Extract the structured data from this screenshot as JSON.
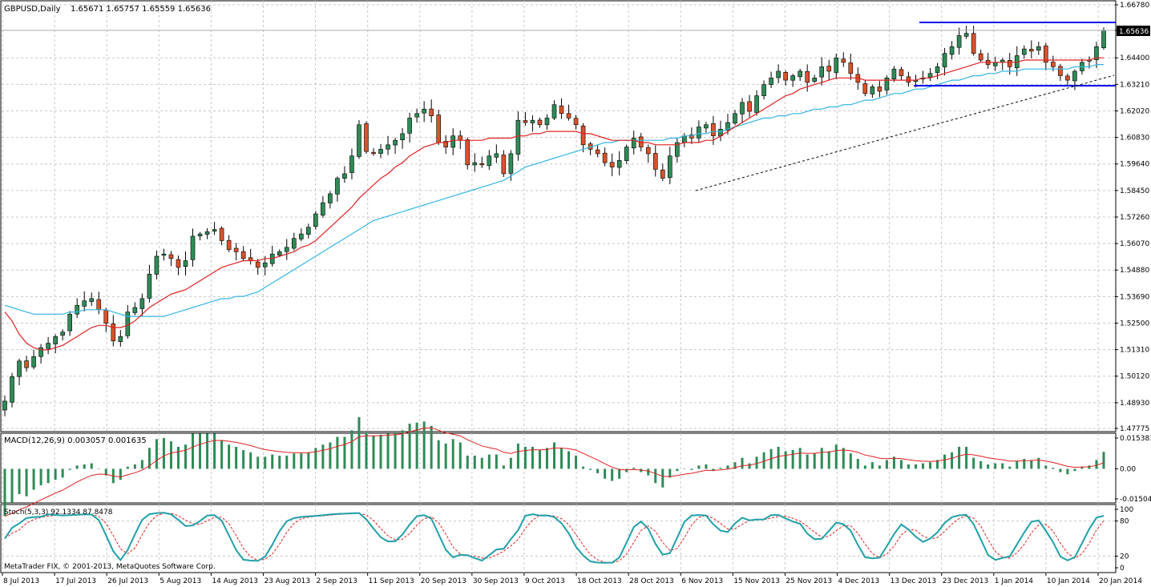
{
  "header": {
    "symbol_label": "GBPUSD,Daily",
    "ohlc_label": "1.65671 1.65757 1.65559 1.65636",
    "current_price_label": "1.65636"
  },
  "footer": {
    "copyright": "MetaTrader FIX, © 2001-2013, MetaQuotes Software Corp."
  },
  "colors": {
    "bull": "#2e8b57",
    "bear": "#d9532b",
    "ma_fast": "#e02020",
    "ma_slow": "#33b5e5",
    "channel": "#0000ee",
    "grid": "#c8c8c8",
    "stoch_main": "#20a0a8",
    "stoch_signal": "#e02020"
  },
  "chart_data": [
    {
      "type": "candlestick",
      "title": "GBPUSD,Daily",
      "y_ticks": [
        "1.66780",
        "1.65636",
        "1.64400",
        "1.63210",
        "1.62020",
        "1.60830",
        "1.59640",
        "1.58450",
        "1.57260",
        "1.56070",
        "1.54880",
        "1.53690",
        "1.52500",
        "1.51310",
        "1.50120",
        "1.48930",
        "1.47775"
      ],
      "ylim": [
        1.47775,
        1.6678
      ],
      "x_ticks": [
        "8 Jul 2013",
        "17 Jul 2013",
        "26 Jul 2013",
        "5 Aug 2013",
        "14 Aug 2013",
        "23 Aug 2013",
        "2 Sep 2013",
        "11 Sep 2013",
        "20 Sep 2013",
        "30 Sep 2013",
        "9 Oct 2013",
        "18 Oct 2013",
        "28 Oct 2013",
        "6 Nov 2013",
        "15 Nov 2013",
        "25 Nov 2013",
        "4 Dec 2013",
        "13 Dec 2013",
        "23 Dec 2013",
        "1 Jan 2014",
        "10 Jan 2014",
        "20 Jan 2014"
      ],
      "close": [
        1.49,
        1.501,
        1.508,
        1.505,
        1.51,
        1.514,
        1.516,
        1.519,
        1.521,
        1.529,
        1.533,
        1.535,
        1.536,
        1.531,
        1.525,
        1.517,
        1.519,
        1.53,
        1.532,
        1.536,
        1.547,
        1.555,
        1.556,
        1.554,
        1.55,
        1.553,
        1.564,
        1.565,
        1.566,
        1.567,
        1.562,
        1.558,
        1.557,
        1.554,
        1.553,
        1.55,
        1.552,
        1.556,
        1.557,
        1.559,
        1.563,
        1.565,
        1.568,
        1.574,
        1.579,
        1.583,
        1.59,
        1.592,
        1.6,
        1.614,
        1.602,
        1.601,
        1.603,
        1.605,
        1.607,
        1.61,
        1.617,
        1.619,
        1.621,
        1.618,
        1.606,
        1.604,
        1.609,
        1.607,
        1.596,
        1.597,
        1.596,
        1.6,
        1.601,
        1.592,
        1.601,
        1.616,
        1.615,
        1.616,
        1.614,
        1.617,
        1.623,
        1.619,
        1.617,
        1.614,
        1.605,
        1.603,
        1.601,
        1.597,
        1.595,
        1.598,
        1.604,
        1.608,
        1.604,
        1.601,
        1.594,
        1.59,
        1.6,
        1.606,
        1.609,
        1.608,
        1.613,
        1.614,
        1.609,
        1.612,
        1.615,
        1.619,
        1.624,
        1.62,
        1.627,
        1.632,
        1.635,
        1.638,
        1.634,
        1.636,
        1.638,
        1.633,
        1.635,
        1.64,
        1.638,
        1.644,
        1.642,
        1.637,
        1.633,
        1.628,
        1.631,
        1.629,
        1.635,
        1.639,
        1.636,
        1.633,
        1.634,
        1.635,
        1.637,
        1.64,
        1.646,
        1.649,
        1.654,
        1.655,
        1.646,
        1.643,
        1.641,
        1.642,
        1.643,
        1.64,
        1.645,
        1.648,
        1.647,
        1.649,
        1.642,
        1.64,
        1.636,
        1.634,
        1.638,
        1.642,
        1.643,
        1.649,
        1.6564
      ],
      "ma_fast": [
        1.53,
        1.526,
        1.52,
        1.516,
        1.514,
        1.513,
        1.513,
        1.514,
        1.515,
        1.517,
        1.519,
        1.521,
        1.523,
        1.524,
        1.524,
        1.523,
        1.523,
        1.524,
        1.526,
        1.529,
        1.532,
        1.534,
        1.536,
        1.538,
        1.539,
        1.54,
        1.542,
        1.544,
        1.546,
        1.548,
        1.55,
        1.551,
        1.552,
        1.553,
        1.553,
        1.553,
        1.554,
        1.554,
        1.555,
        1.556,
        1.557,
        1.559,
        1.56,
        1.562,
        1.565,
        1.568,
        1.571,
        1.574,
        1.577,
        1.581,
        1.584,
        1.587,
        1.59,
        1.592,
        1.595,
        1.597,
        1.6,
        1.602,
        1.604,
        1.605,
        1.606,
        1.606,
        1.607,
        1.607,
        1.607,
        1.607,
        1.607,
        1.608,
        1.608,
        1.608,
        1.608,
        1.609,
        1.609,
        1.61,
        1.61,
        1.611,
        1.611,
        1.611,
        1.611,
        1.611,
        1.61,
        1.61,
        1.609,
        1.608,
        1.607,
        1.607,
        1.607,
        1.607,
        1.606,
        1.606,
        1.605,
        1.605,
        1.605,
        1.605,
        1.606,
        1.606,
        1.606,
        1.607,
        1.607,
        1.609,
        1.611,
        1.613,
        1.615,
        1.617,
        1.619,
        1.621,
        1.623,
        1.625,
        1.627,
        1.628,
        1.63,
        1.631,
        1.632,
        1.633,
        1.634,
        1.635,
        1.635,
        1.635,
        1.635,
        1.634,
        1.634,
        1.634,
        1.634,
        1.634,
        1.634,
        1.634,
        1.634,
        1.635,
        1.635,
        1.636,
        1.637,
        1.638,
        1.639,
        1.64,
        1.641,
        1.642,
        1.642,
        1.642,
        1.642,
        1.642,
        1.642,
        1.643,
        1.643,
        1.643,
        1.643,
        1.643,
        1.643,
        1.643,
        1.643,
        1.643,
        1.643,
        1.644,
        1.644
      ],
      "ma_slow": [
        1.533,
        1.532,
        1.531,
        1.53,
        1.529,
        1.529,
        1.529,
        1.529,
        1.529,
        1.53,
        1.53,
        1.531,
        1.531,
        1.531,
        1.531,
        1.53,
        1.529,
        1.528,
        1.528,
        1.528,
        1.528,
        1.528,
        1.528,
        1.529,
        1.53,
        1.531,
        1.532,
        1.533,
        1.534,
        1.535,
        1.536,
        1.536,
        1.537,
        1.537,
        1.538,
        1.539,
        1.541,
        1.543,
        1.545,
        1.547,
        1.549,
        1.551,
        1.553,
        1.555,
        1.557,
        1.559,
        1.561,
        1.563,
        1.565,
        1.567,
        1.569,
        1.571,
        1.572,
        1.573,
        1.574,
        1.575,
        1.576,
        1.577,
        1.578,
        1.579,
        1.58,
        1.581,
        1.582,
        1.583,
        1.584,
        1.585,
        1.586,
        1.587,
        1.588,
        1.589,
        1.591,
        1.593,
        1.595,
        1.596,
        1.597,
        1.598,
        1.599,
        1.6,
        1.601,
        1.602,
        1.603,
        1.604,
        1.605,
        1.606,
        1.606,
        1.607,
        1.607,
        1.607,
        1.607,
        1.607,
        1.607,
        1.607,
        1.608,
        1.608,
        1.609,
        1.609,
        1.61,
        1.61,
        1.611,
        1.611,
        1.612,
        1.613,
        1.614,
        1.615,
        1.616,
        1.617,
        1.617,
        1.618,
        1.618,
        1.619,
        1.619,
        1.62,
        1.621,
        1.621,
        1.622,
        1.622,
        1.623,
        1.623,
        1.624,
        1.625,
        1.625,
        1.626,
        1.627,
        1.628,
        1.628,
        1.629,
        1.63,
        1.63,
        1.631,
        1.632,
        1.633,
        1.634,
        1.634,
        1.635,
        1.636,
        1.636,
        1.637,
        1.637,
        1.638,
        1.638,
        1.638,
        1.639,
        1.639,
        1.639,
        1.639,
        1.639,
        1.639,
        1.639,
        1.64,
        1.64,
        1.64,
        1.641,
        1.641
      ]
    },
    {
      "type": "bar",
      "title": "MACD(12,26,9) 0.003057 0.001635",
      "y_ticks": [
        "0.015383",
        "0.00",
        "-0.015045"
      ],
      "ylim": [
        -0.015045,
        0.015383
      ]
    },
    {
      "type": "line",
      "title": "Stoch(5,3,3) 92.1334 87.8478",
      "y_ticks": [
        "100",
        "80",
        "20",
        "0"
      ],
      "ylim": [
        0,
        100
      ]
    }
  ]
}
